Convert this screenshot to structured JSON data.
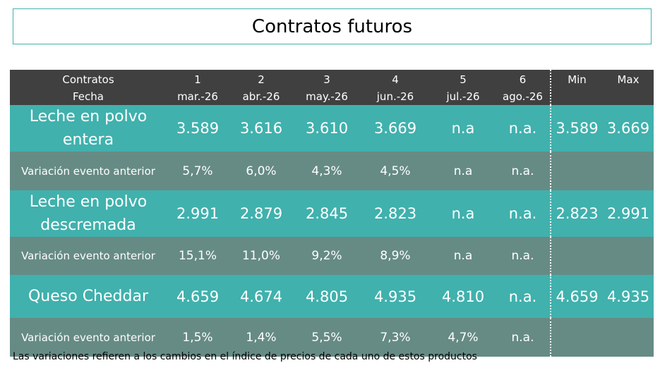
{
  "title": "Contratos futuros",
  "header": {
    "row1_label": "Contratos",
    "row2_label": "Fecha",
    "columns": [
      {
        "num": "1",
        "date": "mar.-26"
      },
      {
        "num": "2",
        "date": "abr.-26"
      },
      {
        "num": "3",
        "date": "may.-26"
      },
      {
        "num": "4",
        "date": "jun.-26"
      },
      {
        "num": "5",
        "date": "jul.-26"
      },
      {
        "num": "6",
        "date": "ago.-26"
      }
    ],
    "min": "Min",
    "max": "Max"
  },
  "rows": [
    {
      "product": "Leche en polvo entera",
      "values": [
        "3.589",
        "3.616",
        "3.610",
        "3.669",
        "n.a",
        "n.a."
      ],
      "min": "3.589",
      "max": "3.669",
      "variation_label": "Variación evento anterior",
      "variations": [
        "5,7%",
        "6,0%",
        "4,3%",
        "4,5%",
        "n.a",
        "n.a."
      ]
    },
    {
      "product": "Leche en polvo descremada",
      "values": [
        "2.991",
        "2.879",
        "2.845",
        "2.823",
        "n.a",
        "n.a."
      ],
      "min": "2.823",
      "max": "2.991",
      "variation_label": "Variación evento anterior",
      "variations": [
        "15,1%",
        "11,0%",
        "9,2%",
        "8,9%",
        "n.a",
        "n.a."
      ]
    },
    {
      "product": "Queso Cheddar",
      "values": [
        "4.659",
        "4.674",
        "4.805",
        "4.935",
        "4.810",
        "n.a."
      ],
      "min": "4.659",
      "max": "4.935",
      "variation_label": "Variación evento anterior",
      "variations": [
        "1,5%",
        "1,4%",
        "5,5%",
        "7,3%",
        "4,7%",
        "n.a."
      ]
    }
  ],
  "footer": "Las variaciones refieren a los cambios en el índice de precios de cada uno de estos productos",
  "colors": {
    "header": "#404040",
    "product_row": "#40b1ad",
    "variation_row": "#668b85",
    "title_border": "#40b1ad"
  }
}
